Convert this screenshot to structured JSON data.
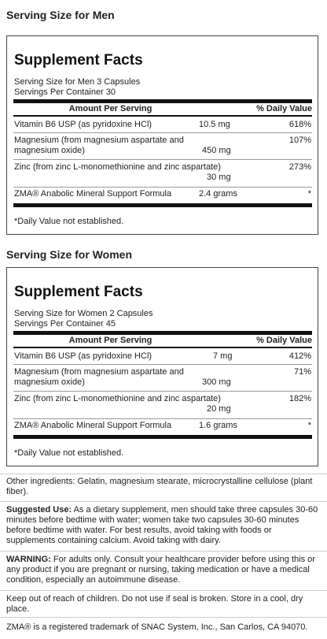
{
  "men": {
    "section_title": "Serving Size for Men",
    "panel_title": "Supplement Facts",
    "serving_size": "Serving Size for Men 3 Capsules",
    "servings_per_container": "Servings Per Container 30",
    "col_amount": "Amount Per Serving",
    "col_dv": "% Daily Value",
    "rows": [
      {
        "name": "Vitamin B6 USP (as pyridoxine HCl)",
        "name2": "",
        "amount": "10.5 mg",
        "dv": "618%"
      },
      {
        "name": "Magnesium (from magnesium aspartate and",
        "name2": "magnesium oxide)",
        "amount": "450 mg",
        "dv": "107%"
      },
      {
        "name": "Zinc (from zinc L-monomethionine and zinc aspartate)",
        "name2": "",
        "amount": "30 mg",
        "dv": "273%"
      },
      {
        "name": "ZMA® Anabolic Mineral Support Formula",
        "name2": "",
        "amount": "2.4 grams",
        "dv": "*"
      }
    ],
    "footnote": "*Daily Value not established."
  },
  "women": {
    "section_title": "Serving Size for Women",
    "panel_title": "Supplement Facts",
    "serving_size": "Serving Size for Women 2 Capsules",
    "servings_per_container": "Servings Per Container 45",
    "col_amount": "Amount Per Serving",
    "col_dv": "% Daily Value",
    "rows": [
      {
        "name": "Vitamin B6 USP (as pyridoxine HCl)",
        "name2": "",
        "amount": "7 mg",
        "dv": "412%"
      },
      {
        "name": "Magnesium (from magnesium aspartate and",
        "name2": "magnesium oxide)",
        "amount": "300 mg",
        "dv": "71%"
      },
      {
        "name": "Zinc (from zinc L-monomethionine and zinc aspartate)",
        "name2": "",
        "amount": "20 mg",
        "dv": "182%"
      },
      {
        "name": "ZMA® Anabolic Mineral Support Formula",
        "name2": "",
        "amount": "1.6 grams",
        "dv": "*"
      }
    ],
    "footnote": "*Daily Value not established."
  },
  "other_ingredients": "Other ingredients: Gelatin, magnesium stearate, microcrystalline cellulose (plant fiber).",
  "suggested_use_label": "Suggested Use:",
  "suggested_use_text": " As a dietary supplement, men should take three capsules 30-60 minutes before bedtime with water; women take two capsules 30-60 minutes before bedtime with water. For best results, avoid taking with foods or supplements containing calcium. Avoid taking with dairy.",
  "warning_label": "WARNING:",
  "warning_text": " For adults only. Consult your healthcare provider before using this or any product if you are pregnant or nursing, taking medication or have a medical condition, especially an autoimmune disease.",
  "storage": "Keep out of reach of children. Do not use if seal is broken. Store in a cool, dry place.",
  "trademark": "ZMA® is a registered trademark of SNAC System, Inc., San Carlos, CA 94070."
}
